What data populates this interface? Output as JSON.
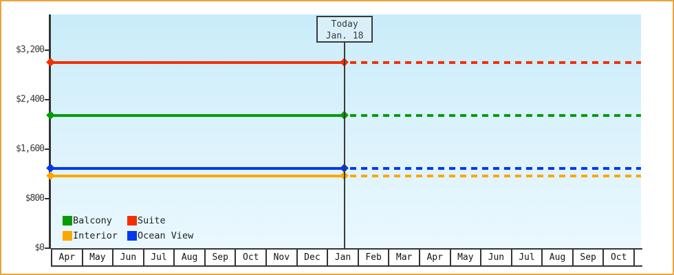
{
  "window": {
    "frame_border_color": "#e9a33d",
    "background_color": "#ffffff",
    "plot_bg_top_color": "#c9ecfa",
    "plot_bg_bottom_color": "#eaf8fe",
    "axis_color": "#333333"
  },
  "chart_data": {
    "type": "line",
    "title": "",
    "xlabel": "",
    "ylabel": "",
    "grid": false,
    "legend_position": "bottom-left-inside",
    "x_months": [
      "Apr",
      "May",
      "Jun",
      "Jul",
      "Aug",
      "Sep",
      "Oct",
      "Nov",
      "Dec",
      "Jan",
      "Feb",
      "Mar",
      "Apr",
      "May",
      "Jun",
      "Jul",
      "Aug",
      "Sep",
      "Oct"
    ],
    "y_ticks": [
      {
        "value": 0,
        "label": "$0"
      },
      {
        "value": 800,
        "label": "$800"
      },
      {
        "value": 1600,
        "label": "$1,600"
      },
      {
        "value": 2400,
        "label": "$2,400"
      },
      {
        "value": 3200,
        "label": "$3,200"
      }
    ],
    "ylim": [
      0,
      3770
    ],
    "today": {
      "line1": "Today",
      "line2": "Jan. 18",
      "month": "Jan",
      "day": 18,
      "month_index": 9,
      "note": "solid history left of today, dashed forecast right of today"
    },
    "series": [
      {
        "name": "Suite",
        "color": "#f53000",
        "value": 2990
      },
      {
        "name": "Balcony",
        "color": "#089b08",
        "value": 2140
      },
      {
        "name": "Ocean View",
        "color": "#0038ef",
        "value": 1290
      },
      {
        "name": "Interior",
        "color": "#faa800",
        "value": 1160
      }
    ],
    "legend_order": [
      "Balcony",
      "Suite",
      "Interior",
      "Ocean View"
    ]
  }
}
